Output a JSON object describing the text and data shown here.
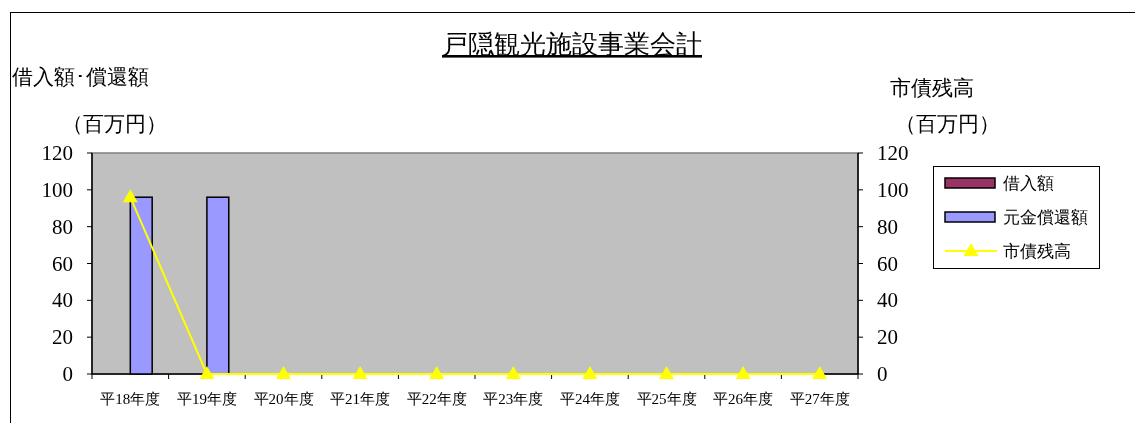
{
  "chart_data": {
    "type": "bar",
    "title": "戸隠観光施設事業会計",
    "ylabel": "借入額･償還額（百万円）",
    "y2label": "市債残高（百万円）",
    "categories": [
      "平18年度",
      "平19年度",
      "平20年度",
      "平21年度",
      "平22年度",
      "平23年度",
      "平24年度",
      "平25年度",
      "平26年度",
      "平27年度"
    ],
    "series": [
      {
        "name": "借入額",
        "color": "#993366",
        "values": [
          0,
          0,
          0,
          0,
          0,
          0,
          0,
          0,
          0,
          0
        ]
      },
      {
        "name": "元金償還額",
        "color": "#9999ff",
        "values": [
          96,
          96,
          0,
          0,
          0,
          0,
          0,
          0,
          0,
          0
        ]
      },
      {
        "name": "市債残高",
        "type": "line",
        "axis": "y2",
        "color": "#ffff00",
        "line_style": "solid",
        "values": [
          96,
          0,
          0,
          0,
          0,
          0,
          0,
          0,
          0,
          0
        ]
      }
    ],
    "ylim": [
      0,
      120
    ],
    "yticks": [
      0,
      20,
      40,
      60,
      80,
      100,
      120
    ],
    "y2lim": [
      0,
      120
    ],
    "y2ticks": [
      0,
      20,
      40,
      60,
      80,
      100,
      120
    ],
    "legend": "right",
    "marker": "triangle"
  }
}
